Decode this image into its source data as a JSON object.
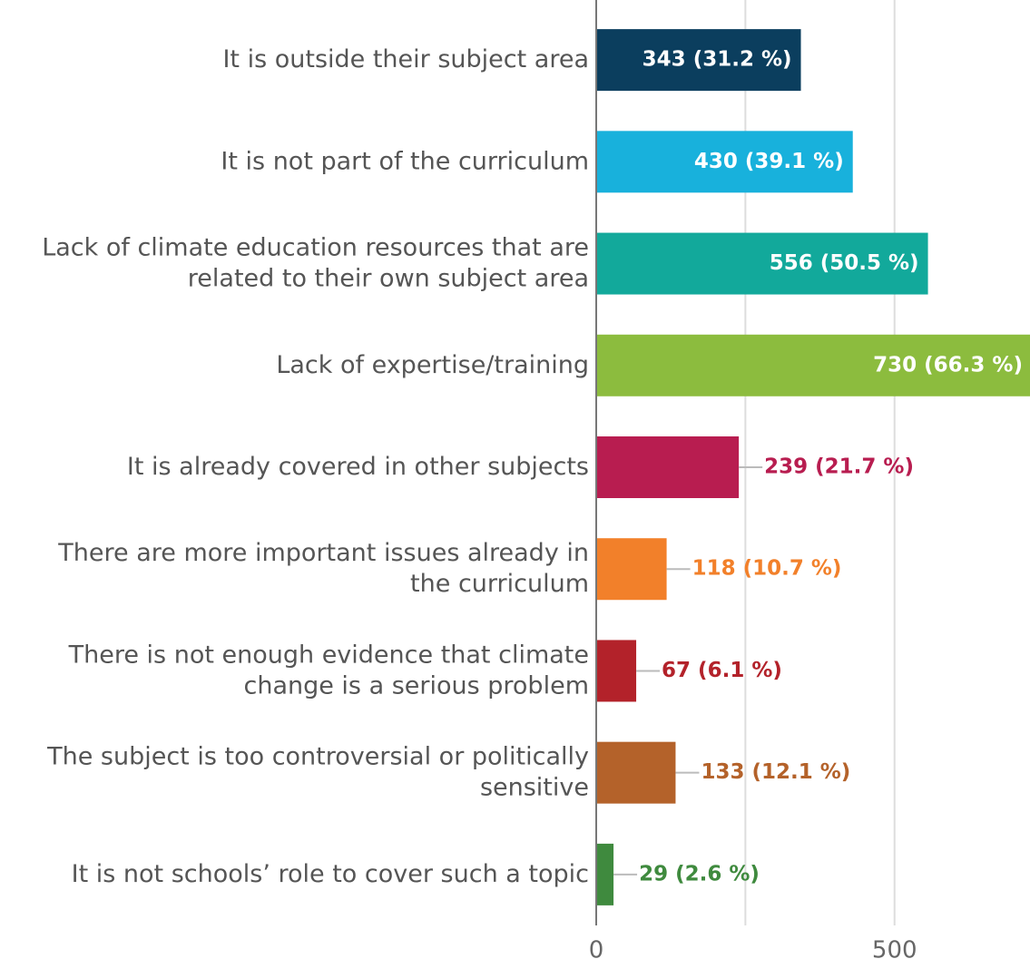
{
  "chart_data": {
    "type": "hbar",
    "categories": [
      "It is outside their subject area",
      "It is not part of the curriculum",
      "Lack of climate education resources that are\nrelated to their own subject area",
      "Lack of expertise/training",
      "It is already covered in other subjects",
      "There are more important issues already in\nthe curriculum",
      "There is not enough evidence that climate\nchange is a serious problem",
      "The subject is too controversial or politically\nsensitive",
      "It is not schools’ role to cover such a topic"
    ],
    "values": [
      343,
      430,
      556,
      730,
      239,
      118,
      67,
      133,
      29
    ],
    "value_labels": [
      "343 (31.2 %)",
      "430 (39.1 %)",
      "556 (50.5 %)",
      "730 (66.3 %)",
      "239 (21.7 %)",
      "118 (10.7 %)",
      "67 (6.1 %)",
      "133 (12.1 %)",
      "29 (2.6 %)"
    ],
    "colors": [
      "#0b3e5e",
      "#18b1dc",
      "#12a99b",
      "#8cbc3e",
      "#b81d50",
      "#f2802a",
      "#b3222a",
      "#b4622a",
      "#3f8a3e"
    ],
    "xlim": [
      0,
      727
    ],
    "xticks": [
      0,
      500
    ],
    "xgrid": [
      250,
      500
    ]
  }
}
